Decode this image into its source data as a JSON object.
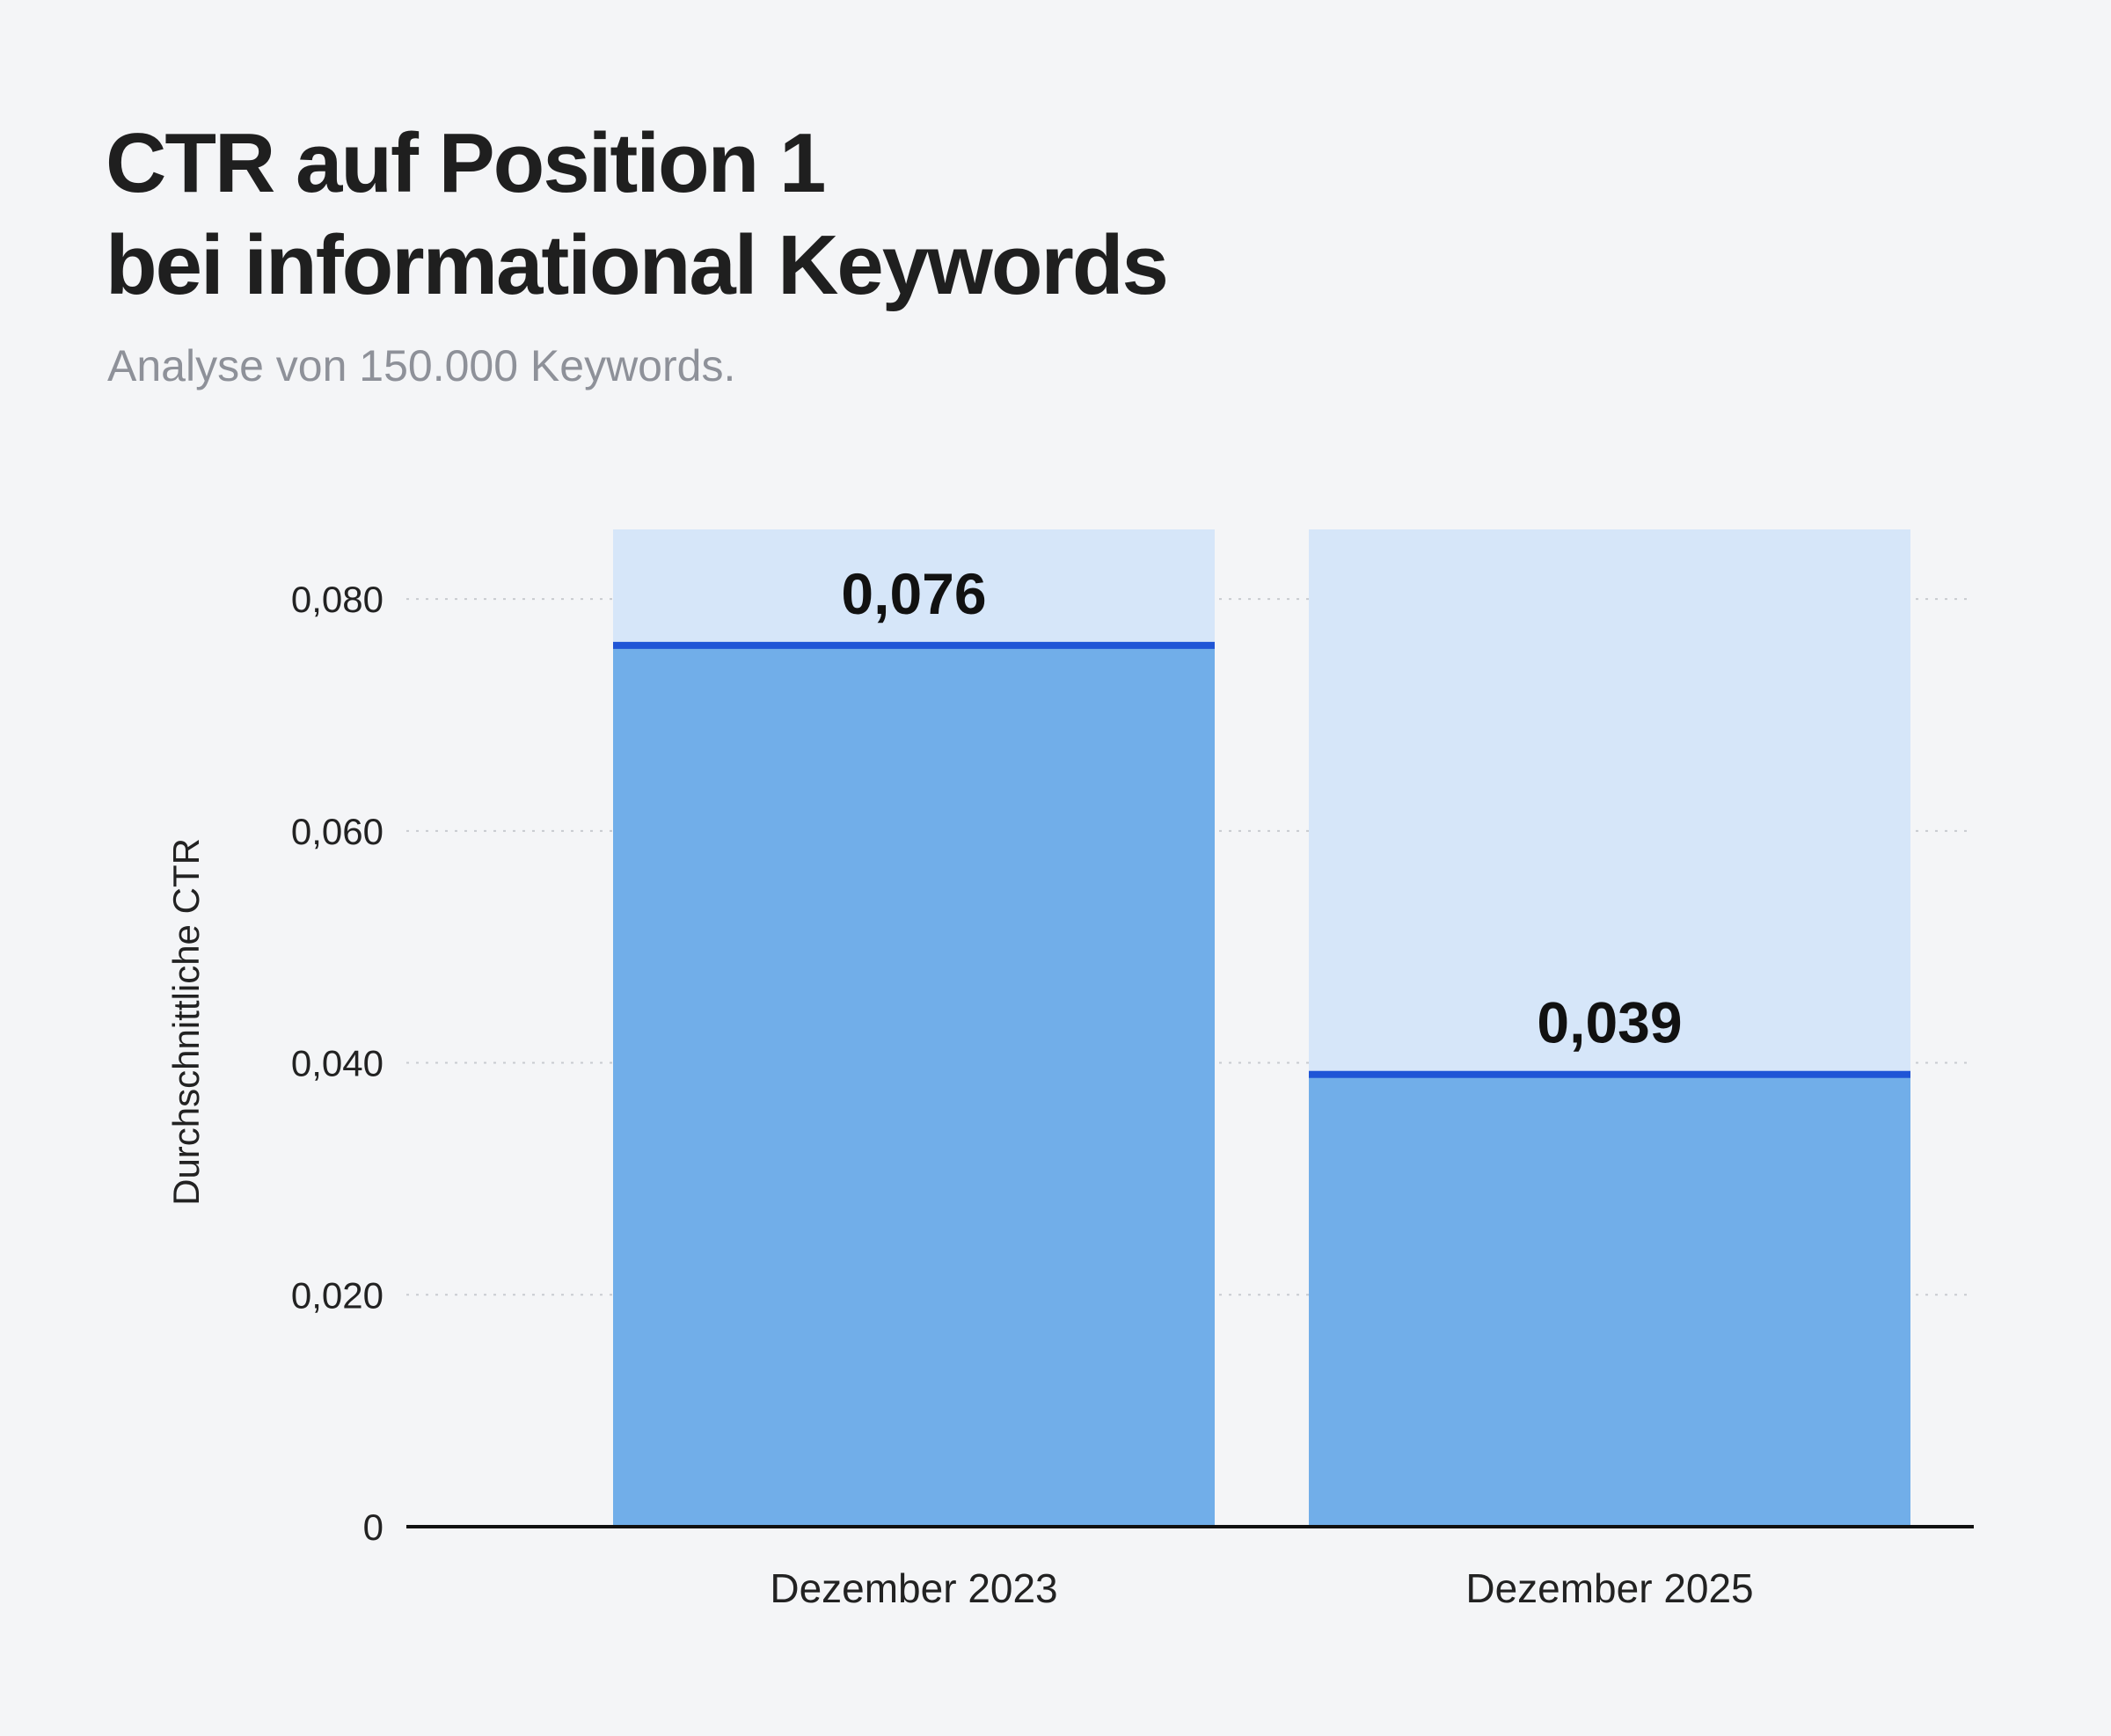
{
  "chart_data": {
    "type": "bar",
    "title": [
      "CTR auf Position 1",
      "bei informational Keywords"
    ],
    "subtitle": "Analyse von 150.000 Keywords.",
    "ylabel": "Durchschnittliche CTR",
    "xlabel": "",
    "categories": [
      "Dezember 2023",
      "Dezember 2025"
    ],
    "values": [
      0.076,
      0.039
    ],
    "value_labels": [
      "0,076",
      "0,039"
    ],
    "ylim": [
      0,
      0.086
    ],
    "yticks": [
      0,
      0.02,
      0.04,
      0.06,
      0.08
    ],
    "ytick_labels": [
      "0",
      "0,020",
      "0,040",
      "0,060",
      "0,080"
    ],
    "grid": true,
    "legend": "none"
  },
  "colors": {
    "background": "#f4f5f7",
    "bar_fill": "#71aee9",
    "bar_track": "#d6e6f9",
    "bar_marker": "#1f55d6",
    "grid": "#c8cbd0",
    "axis": "#111111",
    "subtitle": "#8e9199"
  }
}
